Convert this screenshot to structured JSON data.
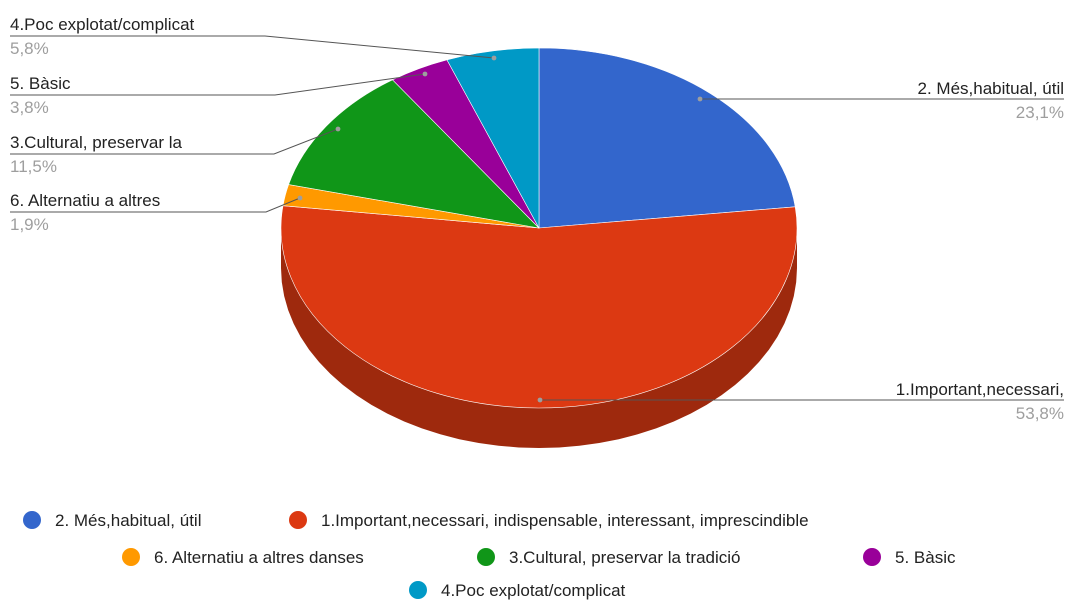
{
  "chart_data": {
    "type": "pie",
    "three_d": true,
    "slices": [
      {
        "label": "2. Més,habitual, útil",
        "callout": "2. Més,habitual, útil",
        "value": 23.1,
        "value_label": "23,1%",
        "color": "#3366cc"
      },
      {
        "label": "1.Important,necessari, indispensable, interessant, imprescindible",
        "callout": "1.Important,necessari,",
        "value": 53.8,
        "value_label": "53,8%",
        "color": "#dc3912"
      },
      {
        "label": "6. Alternatiu a altres danses",
        "callout": "6. Alternatiu a altres",
        "value": 1.9,
        "value_label": "1,9%",
        "color": "#ff9900"
      },
      {
        "label": "3.Cultural,  preservar la tradició",
        "callout": "3.Cultural,  preservar la",
        "value": 11.5,
        "value_label": "11,5%",
        "color": "#109618"
      },
      {
        "label": "5. Bàsic",
        "callout": "5. Bàsic",
        "value": 3.8,
        "value_label": "3,8%",
        "color": "#990099"
      },
      {
        "label": "4.Poc explotat/complicat",
        "callout": "4.Poc explotat/complicat",
        "value": 5.8,
        "value_label": "5,8%",
        "color": "#0099c6"
      }
    ],
    "legend_position": "bottom"
  }
}
